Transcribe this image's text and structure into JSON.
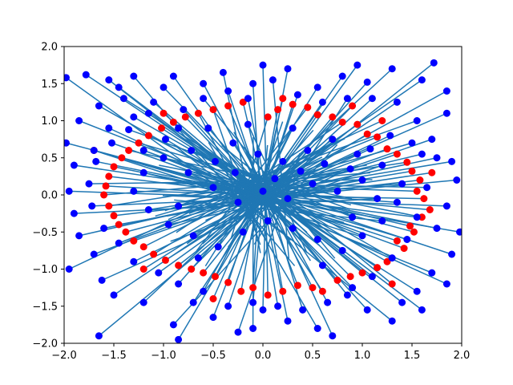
{
  "chart_data": {
    "type": "scatter",
    "title": "",
    "xlabel": "",
    "ylabel": "",
    "xlim": [
      -2.0,
      2.0
    ],
    "ylim": [
      -2.0,
      2.0
    ],
    "xticks": [
      "−2.0",
      "−1.5",
      "−1.0",
      "−0.5",
      "0.0",
      "0.5",
      "1.0",
      "1.5",
      "2.0"
    ],
    "yticks": [
      "−2.0",
      "−1.5",
      "−1.0",
      "−0.5",
      "0.0",
      "0.5",
      "1.0",
      "1.5",
      "2.0"
    ],
    "grid": false,
    "legend": "none",
    "colors": {
      "red": "#ff0000",
      "blue": "#0000ff",
      "line": "#1f77b4"
    },
    "series": [
      {
        "points": [
          [
            0.05,
            1.05
          ],
          [
            0.3,
            1.22
          ],
          [
            0.55,
            1.08
          ],
          [
            0.8,
            0.98
          ],
          [
            1.05,
            0.82
          ],
          [
            1.25,
            0.62
          ],
          [
            1.45,
            0.44
          ],
          [
            1.58,
            0.2
          ],
          [
            1.62,
            -0.05
          ],
          [
            1.6,
            -0.3
          ],
          [
            1.52,
            -0.5
          ],
          [
            1.42,
            -0.72
          ],
          [
            1.25,
            -0.9
          ],
          [
            1.0,
            -1.05
          ],
          [
            0.75,
            -1.15
          ],
          [
            0.5,
            -1.25
          ],
          [
            0.2,
            -1.3
          ],
          [
            -0.1,
            -1.25
          ],
          [
            -0.35,
            -1.18
          ],
          [
            -0.6,
            -1.05
          ],
          [
            -0.85,
            -0.95
          ],
          [
            -1.1,
            -0.8
          ],
          [
            -1.3,
            -0.62
          ],
          [
            -1.45,
            -0.4
          ],
          [
            -1.55,
            -0.15
          ],
          [
            -1.58,
            0.12
          ],
          [
            -1.5,
            0.38
          ],
          [
            -1.35,
            0.6
          ],
          [
            -1.15,
            0.8
          ],
          [
            -0.9,
            0.98
          ],
          [
            -0.65,
            1.1
          ],
          [
            -0.35,
            1.2
          ],
          [
            0.15,
            1.15
          ],
          [
            0.45,
            1.18
          ],
          [
            0.7,
            1.05
          ],
          [
            0.95,
            0.95
          ],
          [
            1.15,
            0.78
          ],
          [
            1.35,
            0.55
          ],
          [
            1.5,
            0.32
          ],
          [
            1.55,
            0.05
          ],
          [
            1.48,
            -0.42
          ],
          [
            1.35,
            -0.62
          ],
          [
            1.15,
            -0.98
          ],
          [
            0.88,
            -1.1
          ],
          [
            0.6,
            -1.3
          ],
          [
            0.35,
            -1.22
          ],
          [
            0.05,
            -1.35
          ],
          [
            -0.22,
            -1.3
          ],
          [
            -0.48,
            -1.1
          ],
          [
            -0.72,
            -1.0
          ],
          [
            -0.98,
            -0.88
          ],
          [
            -1.2,
            -0.7
          ],
          [
            -1.38,
            -0.5
          ],
          [
            -1.5,
            -0.28
          ],
          [
            -1.6,
            0.0
          ],
          [
            -1.55,
            0.25
          ],
          [
            -1.42,
            0.5
          ],
          [
            -1.25,
            0.7
          ],
          [
            -1.02,
            0.9
          ],
          [
            -0.78,
            1.05
          ],
          [
            -0.5,
            1.15
          ],
          [
            -0.2,
            1.25
          ],
          [
            0.2,
            1.3
          ],
          [
            1.2,
            1.0
          ],
          [
            1.7,
            0.3
          ],
          [
            1.68,
            -0.2
          ],
          [
            1.3,
            -1.2
          ],
          [
            -0.5,
            -1.4
          ],
          [
            -1.2,
            -1.0
          ],
          [
            -1.7,
            0.6
          ],
          [
            -1.0,
            1.1
          ],
          [
            0.9,
            1.2
          ]
        ],
        "color": "#ff0000"
      },
      {
        "points": [
          [
            -1.98,
            1.58
          ],
          [
            -1.78,
            1.62
          ],
          [
            -1.45,
            1.45
          ],
          [
            -1.3,
            1.6
          ],
          [
            -1.0,
            1.45
          ],
          [
            -0.6,
            1.5
          ],
          [
            -0.4,
            1.65
          ],
          [
            -0.15,
            1.3
          ],
          [
            0.25,
            1.7
          ],
          [
            0.55,
            1.45
          ],
          [
            0.8,
            1.6
          ],
          [
            1.05,
            1.52
          ],
          [
            1.3,
            1.7
          ],
          [
            1.6,
            1.55
          ],
          [
            1.72,
            1.78
          ],
          [
            1.85,
            1.1
          ],
          [
            1.9,
            0.45
          ],
          [
            1.95,
            0.2
          ],
          [
            1.85,
            -0.15
          ],
          [
            1.75,
            -0.45
          ],
          [
            1.9,
            -0.8
          ],
          [
            1.7,
            -1.05
          ],
          [
            1.55,
            -1.3
          ],
          [
            1.6,
            -1.55
          ],
          [
            1.3,
            -1.7
          ],
          [
            1.05,
            -1.55
          ],
          [
            0.85,
            -1.35
          ],
          [
            0.55,
            -1.8
          ],
          [
            0.25,
            -1.7
          ],
          [
            0.0,
            -1.55
          ],
          [
            -0.25,
            -1.85
          ],
          [
            -0.5,
            -1.65
          ],
          [
            -0.7,
            -1.45
          ],
          [
            -0.9,
            -1.75
          ],
          [
            -1.2,
            -1.45
          ],
          [
            -1.5,
            -1.35
          ],
          [
            -1.62,
            -1.15
          ],
          [
            -1.7,
            -0.8
          ],
          [
            -1.85,
            -0.55
          ],
          [
            -1.9,
            -0.25
          ],
          [
            -1.95,
            0.05
          ],
          [
            -1.9,
            0.4
          ],
          [
            -1.7,
            0.6
          ],
          [
            -1.55,
            0.9
          ],
          [
            -1.3,
            1.05
          ],
          [
            -1.1,
            1.25
          ],
          [
            -0.8,
            1.15
          ],
          [
            -0.55,
            0.9
          ],
          [
            -0.3,
            0.7
          ],
          [
            -0.05,
            0.55
          ],
          [
            0.2,
            0.45
          ],
          [
            0.45,
            0.6
          ],
          [
            0.7,
            0.75
          ],
          [
            0.95,
            0.55
          ],
          [
            1.2,
            0.4
          ],
          [
            1.4,
            0.15
          ],
          [
            1.35,
            -0.1
          ],
          [
            1.2,
            -0.35
          ],
          [
            1.0,
            -0.55
          ],
          [
            0.8,
            -0.75
          ],
          [
            0.55,
            -0.6
          ],
          [
            0.3,
            -0.45
          ],
          [
            0.05,
            -0.35
          ],
          [
            -0.2,
            -0.5
          ],
          [
            -0.45,
            -0.7
          ],
          [
            -0.7,
            -0.55
          ],
          [
            -0.95,
            -0.4
          ],
          [
            -1.15,
            -0.2
          ],
          [
            -1.3,
            0.05
          ],
          [
            -1.2,
            0.3
          ],
          [
            -1.0,
            0.5
          ],
          [
            -0.75,
            0.3
          ],
          [
            -0.5,
            0.1
          ],
          [
            -0.25,
            -0.1
          ],
          [
            0.0,
            0.05
          ],
          [
            0.25,
            -0.05
          ],
          [
            0.5,
            0.15
          ],
          [
            0.75,
            0.05
          ],
          [
            1.0,
            0.2
          ],
          [
            1.15,
            -0.05
          ],
          [
            -1.65,
            1.2
          ],
          [
            -1.4,
            1.3
          ],
          [
            -1.15,
            1.1
          ],
          [
            -0.85,
            0.9
          ],
          [
            -0.6,
            1.3
          ],
          [
            -0.35,
            1.4
          ],
          [
            -0.1,
            1.5
          ],
          [
            0.1,
            1.55
          ],
          [
            0.35,
            1.35
          ],
          [
            0.6,
            1.25
          ],
          [
            0.85,
            1.3
          ],
          [
            1.1,
            1.3
          ],
          [
            1.35,
            1.25
          ],
          [
            1.55,
            1.0
          ],
          [
            1.7,
            0.75
          ],
          [
            1.75,
            0.5
          ],
          [
            1.65,
            0.1
          ],
          [
            1.55,
            -0.3
          ],
          [
            1.45,
            -0.6
          ],
          [
            1.3,
            -0.85
          ],
          [
            1.1,
            -1.1
          ],
          [
            0.9,
            -1.25
          ],
          [
            0.65,
            -1.45
          ],
          [
            0.4,
            -1.55
          ],
          [
            0.15,
            -1.5
          ],
          [
            -0.1,
            -1.45
          ],
          [
            -0.35,
            -1.5
          ],
          [
            -0.6,
            -1.3
          ],
          [
            -0.85,
            -1.2
          ],
          [
            -1.05,
            -1.05
          ],
          [
            -1.3,
            -0.9
          ],
          [
            -1.45,
            -0.65
          ],
          [
            -1.6,
            -0.45
          ],
          [
            -1.72,
            -0.15
          ],
          [
            -1.75,
            0.15
          ],
          [
            -1.68,
            0.45
          ],
          [
            -1.52,
            0.7
          ],
          [
            -1.35,
            0.88
          ],
          [
            -1.2,
            0.6
          ],
          [
            -0.98,
            0.75
          ],
          [
            -0.72,
            0.6
          ],
          [
            -0.48,
            0.45
          ],
          [
            -0.28,
            0.3
          ],
          [
            0.12,
            0.22
          ],
          [
            0.38,
            0.32
          ],
          [
            0.62,
            0.42
          ],
          [
            0.88,
            0.35
          ],
          [
            1.08,
            0.62
          ],
          [
            1.28,
            0.8
          ],
          [
            1.5,
            0.7
          ],
          [
            1.6,
            0.55
          ],
          [
            -1.85,
            1.0
          ],
          [
            -1.55,
            1.55
          ],
          [
            -0.9,
            1.6
          ],
          [
            0.0,
            1.75
          ],
          [
            0.95,
            1.75
          ],
          [
            1.85,
            1.4
          ],
          [
            1.98,
            -0.5
          ],
          [
            1.85,
            -1.2
          ],
          [
            1.4,
            -1.45
          ],
          [
            0.7,
            -1.9
          ],
          [
            -0.1,
            -1.8
          ],
          [
            -0.85,
            -1.95
          ],
          [
            -1.65,
            -1.9
          ],
          [
            -1.95,
            -1.0
          ],
          [
            -1.98,
            0.7
          ],
          [
            0.3,
            0.9
          ],
          [
            -0.15,
            0.95
          ],
          [
            0.6,
            -0.95
          ],
          [
            -0.65,
            -0.85
          ],
          [
            0.9,
            -0.3
          ],
          [
            -0.85,
            -0.15
          ]
        ],
        "color": "#0000ff"
      }
    ]
  }
}
